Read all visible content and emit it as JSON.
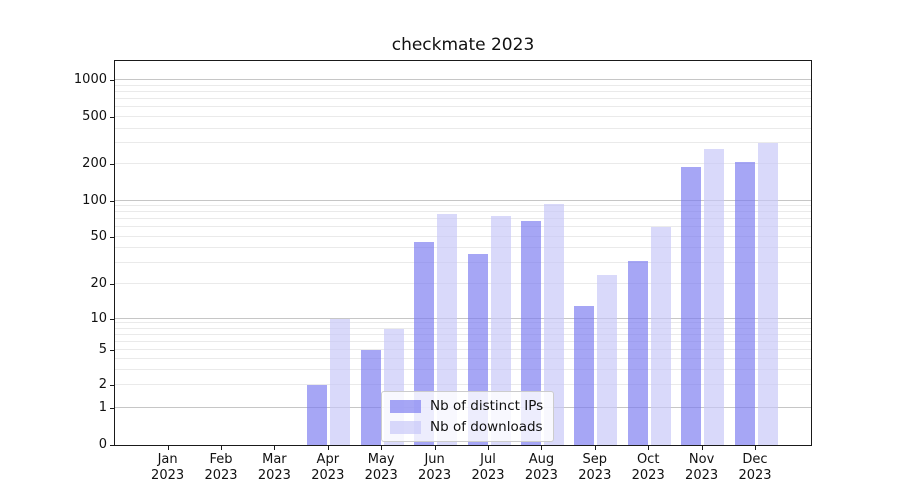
{
  "chart_data": {
    "type": "bar",
    "title": "checkmate 2023",
    "categories": [
      "Jan",
      "Feb",
      "Mar",
      "Apr",
      "May",
      "Jun",
      "Jul",
      "Aug",
      "Sep",
      "Oct",
      "Nov",
      "Dec"
    ],
    "year_label": "2023",
    "series": [
      {
        "name": "Nb of distinct IPs",
        "color": "rgba(123,123,240,0.67)",
        "values": [
          0,
          0,
          0,
          2,
          5,
          45,
          36,
          68,
          13,
          31,
          190,
          210
        ]
      },
      {
        "name": "Nb of downloads",
        "color": "rgba(198,198,247,0.67)",
        "values": [
          0,
          0,
          0,
          10,
          8,
          78,
          75,
          93,
          24,
          60,
          270,
          300
        ]
      }
    ],
    "xlabel": "",
    "ylabel": "",
    "y_axis": {
      "scale": "symlog",
      "tick_values": [
        0,
        1,
        2,
        5,
        10,
        20,
        50,
        100,
        200,
        500,
        1000
      ],
      "ylim": [
        0,
        1400
      ],
      "anchors": [
        [
          0,
          0.0
        ],
        [
          1,
          0.0964
        ],
        [
          2,
          0.1555
        ],
        [
          5,
          0.2475
        ],
        [
          10,
          0.3292
        ],
        [
          20,
          0.4186
        ],
        [
          50,
          0.543
        ],
        [
          100,
          0.6364
        ],
        [
          200,
          0.7315
        ],
        [
          500,
          0.8541
        ],
        [
          1000,
          0.95
        ]
      ],
      "major_grid_values": [
        1,
        10,
        100,
        1000
      ],
      "minor_grid_values": [
        2,
        3,
        4,
        5,
        6,
        7,
        8,
        9,
        20,
        30,
        40,
        50,
        60,
        70,
        80,
        90,
        200,
        300,
        400,
        500,
        600,
        700,
        800,
        900
      ]
    },
    "grid": true,
    "legend": {
      "position": "lower center",
      "labels": [
        "Nb of distinct IPs",
        "Nb of downloads"
      ]
    }
  },
  "colors": {
    "major_grid": "#c6c6c6",
    "minor_grid": "#eaeaea",
    "spine": "#1a1a1a",
    "text": "#111111",
    "legend_border": "#cccccc",
    "legend_bg": "rgba(255,255,255,0.8)"
  }
}
